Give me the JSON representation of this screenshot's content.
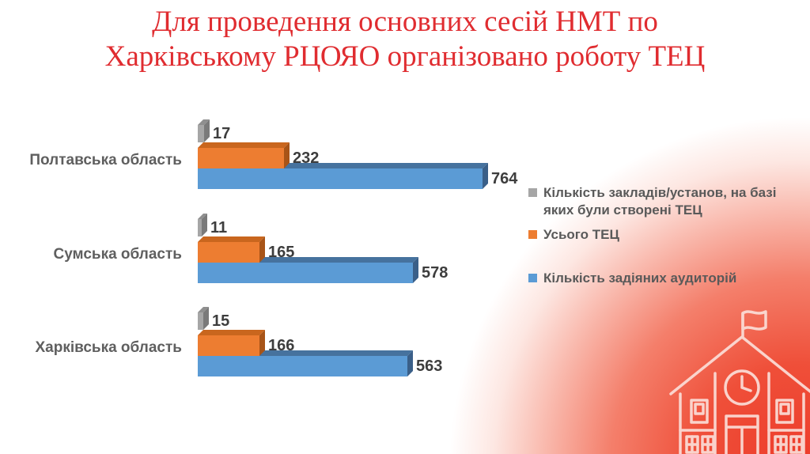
{
  "slide": {
    "title_line1": "Для проведення основних сесій НМТ по",
    "title_line2": "Харківському РЦОЯО організовано роботу ТЕЦ",
    "title_color": "#e02c30",
    "background_accent_color": "#ed3b2a"
  },
  "chart_data": {
    "type": "bar",
    "orientation": "horizontal",
    "effect": "3d",
    "grid": false,
    "data_labels": true,
    "legend_position": "right",
    "categories": [
      "Полтавська область",
      "Сумська область",
      "Харківська область"
    ],
    "series": [
      {
        "name": "Кількість закладів/установ, на базі яких були створені ТЕЦ",
        "color": "#a6a6a6",
        "color_top": "#8f8f8f",
        "color_side": "#7a7a7a",
        "values": [
          17,
          11,
          15
        ]
      },
      {
        "name": "Усього ТЕЦ",
        "color": "#ed7d31",
        "color_top": "#c9661e",
        "color_side": "#a85417",
        "values": [
          232,
          165,
          166
        ]
      },
      {
        "name": "Кількість задіяних аудиторій",
        "color": "#5b9bd5",
        "color_top": "#46729e",
        "color_side": "#3a5f88",
        "values": [
          764,
          578,
          563
        ]
      }
    ],
    "xlim": [
      0,
      800
    ]
  }
}
